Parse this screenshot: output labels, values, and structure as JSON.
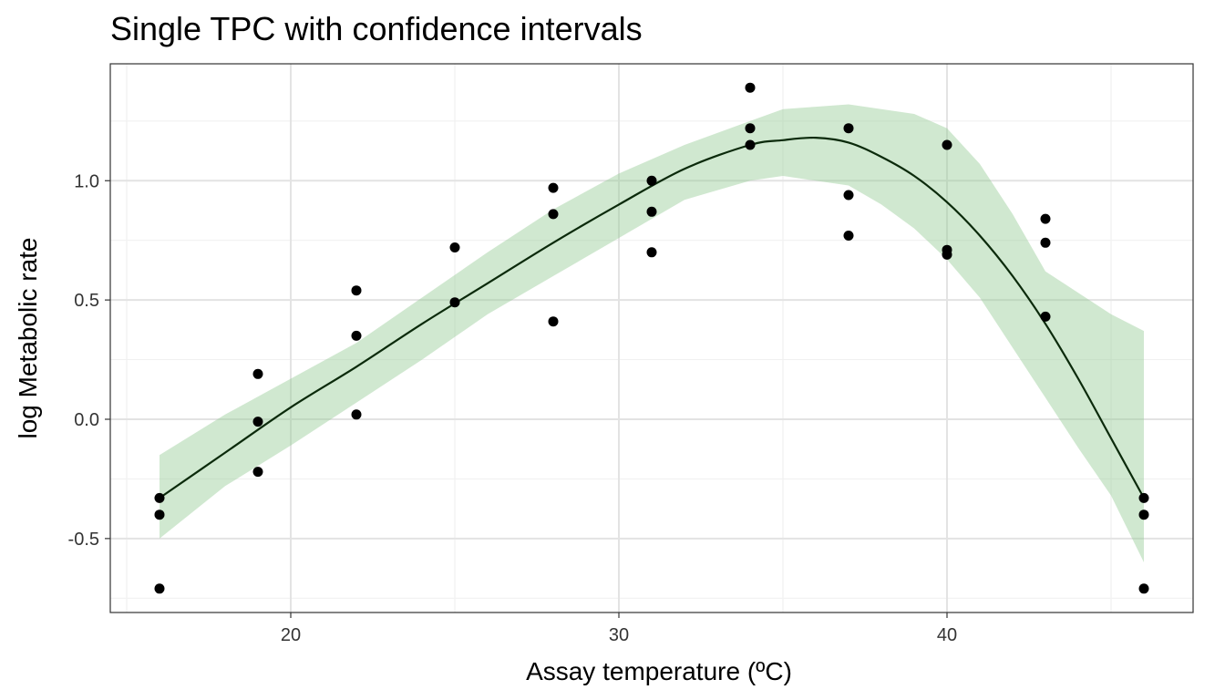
{
  "chart_data": {
    "type": "scatter",
    "title": "Single TPC with confidence intervals",
    "xlabel": "Assay temperature (ºC)",
    "ylabel": "log Metabolic rate",
    "xlim": [
      14.5,
      47.5
    ],
    "ylim": [
      -0.81,
      1.49
    ],
    "x_ticks": [
      20,
      30,
      40
    ],
    "x_tick_labels": [
      "20",
      "30",
      "40"
    ],
    "y_ticks": [
      -0.5,
      0.0,
      0.5,
      1.0
    ],
    "y_tick_labels": [
      "-0.5",
      "0.0",
      "0.5",
      "1.0"
    ],
    "grid": true,
    "colors": {
      "points": "#000000",
      "fit_line": "#0b2a0b",
      "ribbon": "#8fc98f",
      "grid_major": "#e3e3e3",
      "grid_minor": "#f1f1f1",
      "panel_border": "#333333"
    },
    "points": {
      "x": [
        16,
        16,
        16,
        19,
        19,
        19,
        22,
        22,
        22,
        25,
        25,
        28,
        28,
        28,
        31,
        31,
        31,
        34,
        34,
        34,
        37,
        37,
        37,
        40,
        40,
        40,
        43,
        43,
        43,
        46,
        46,
        46
      ],
      "y": [
        -0.33,
        -0.4,
        -0.71,
        0.19,
        -0.01,
        -0.22,
        0.54,
        0.35,
        0.02,
        0.72,
        0.49,
        0.97,
        0.86,
        0.41,
        1.0,
        0.87,
        0.7,
        1.39,
        1.22,
        1.15,
        1.22,
        0.94,
        0.77,
        1.15,
        0.71,
        0.69,
        0.84,
        0.74,
        0.43,
        -0.33,
        -0.4,
        -0.71
      ]
    },
    "fit": {
      "x": [
        16,
        18,
        20,
        22,
        24,
        26,
        28,
        30,
        32,
        34,
        35,
        36,
        37,
        38,
        39,
        40,
        41,
        42,
        43,
        44,
        45,
        46
      ],
      "y": [
        -0.33,
        -0.14,
        0.05,
        0.22,
        0.4,
        0.57,
        0.74,
        0.9,
        1.05,
        1.15,
        1.17,
        1.18,
        1.16,
        1.1,
        1.02,
        0.91,
        0.77,
        0.6,
        0.4,
        0.17,
        -0.08,
        -0.33
      ]
    },
    "ci": {
      "x": [
        16,
        18,
        20,
        22,
        24,
        26,
        28,
        30,
        32,
        34,
        35,
        36,
        37,
        38,
        39,
        40,
        41,
        42,
        43,
        44,
        45,
        46
      ],
      "upper": [
        -0.15,
        0.02,
        0.17,
        0.32,
        0.51,
        0.7,
        0.88,
        1.03,
        1.15,
        1.25,
        1.3,
        1.31,
        1.32,
        1.3,
        1.28,
        1.22,
        1.07,
        0.86,
        0.62,
        0.53,
        0.44,
        0.37
      ],
      "lower": [
        -0.5,
        -0.28,
        -0.11,
        0.07,
        0.25,
        0.44,
        0.6,
        0.76,
        0.92,
        1.0,
        1.02,
        1.0,
        0.98,
        0.9,
        0.8,
        0.67,
        0.51,
        0.3,
        0.09,
        -0.12,
        -0.32,
        -0.6
      ]
    }
  }
}
